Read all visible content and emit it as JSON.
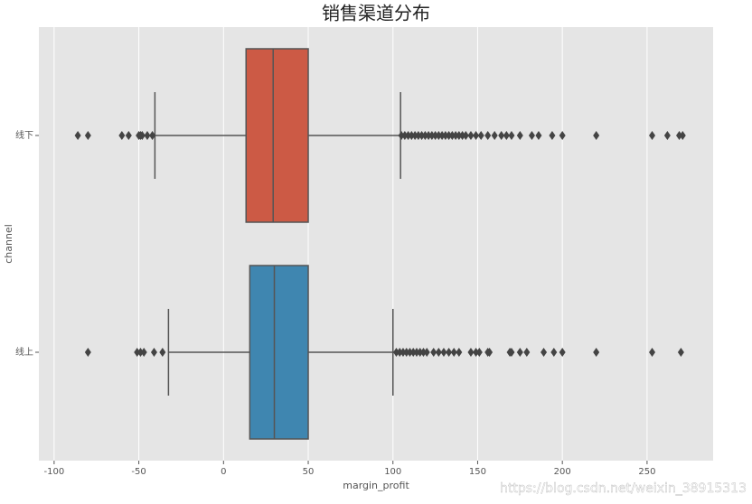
{
  "chart_data": {
    "type": "boxplot",
    "orientation": "horizontal",
    "title": "销售渠道分布",
    "xlabel": "margin_profit",
    "ylabel": "channel",
    "watermark": "https://blog.csdn.net/weixin_38915313",
    "categories": [
      "线下",
      "线上"
    ],
    "boxes": [
      {
        "color": "#cc5a45",
        "whislo": -40.5,
        "q1": 13.3,
        "median": 29.3,
        "q3": 50,
        "whishi": 104.5,
        "fliers": [
          -86,
          -80,
          -60,
          -56,
          -50,
          -49,
          -48,
          -45,
          -42,
          105,
          107,
          109,
          111,
          113,
          115,
          117,
          119,
          121,
          123,
          125,
          127,
          129,
          131,
          133,
          135,
          137,
          139,
          141,
          143,
          146,
          149,
          152,
          156,
          160,
          164,
          167,
          170,
          175,
          182,
          186,
          194,
          200,
          220,
          253,
          262,
          269,
          271
        ]
      },
      {
        "color": "#3f86b0",
        "whislo": -32.5,
        "q1": 15.5,
        "median": 30,
        "q3": 50,
        "whishi": 100,
        "fliers": [
          -80,
          -51,
          -49,
          -47,
          -41,
          -36,
          102,
          104,
          106,
          108,
          110,
          112,
          114,
          116,
          118,
          120,
          124,
          127,
          130,
          133,
          136,
          139,
          146,
          149,
          151,
          156,
          157,
          169,
          170,
          175,
          179,
          189,
          195,
          200,
          220,
          253,
          270
        ]
      }
    ],
    "xlim": [
      -109,
      289
    ],
    "xticks": [
      -100,
      -50,
      0,
      50,
      100,
      150,
      200,
      250
    ],
    "grid": true
  }
}
